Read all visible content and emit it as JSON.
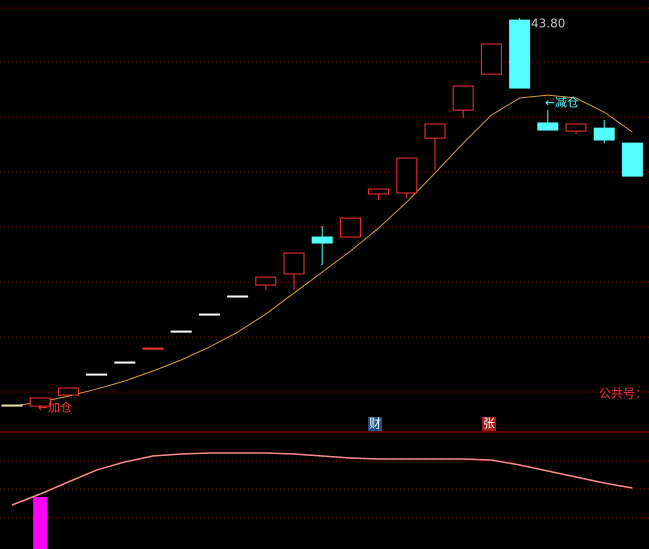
{
  "chart_data": [
    {
      "type": "candlestick",
      "max_label": "43.80",
      "ylim": [
        19.85,
        44.85
      ],
      "yticks": [
        44.38,
        41.24,
        38.04,
        34.85,
        31.65,
        28.45,
        25.25,
        22.06
      ],
      "grid": true,
      "open": [
        21.3,
        21.24,
        21.88,
        23.1,
        23.8,
        24.61,
        25.6,
        26.59,
        27.64,
        28.28,
        28.92,
        31.07,
        31.07,
        33.57,
        33.63,
        36.82,
        38.45,
        40.54,
        43.68,
        37.7,
        37.23,
        37.4,
        36.53
      ],
      "high": [
        21.3,
        21.71,
        22.29,
        23.1,
        23.8,
        24.61,
        25.6,
        26.59,
        27.64,
        28.74,
        30.14,
        31.71,
        32.17,
        33.86,
        35.66,
        37.64,
        39.85,
        42.29,
        43.8,
        38.45,
        37.64,
        37.87,
        36.53
      ],
      "low": [
        21.3,
        21.24,
        21.88,
        23.1,
        23.8,
        24.61,
        25.6,
        26.59,
        27.64,
        27.99,
        27.99,
        29.44,
        31.07,
        33.22,
        33.33,
        34.96,
        37.99,
        40.54,
        39.73,
        37.29,
        37.06,
        36.53,
        34.61
      ],
      "close": [
        21.3,
        21.71,
        22.29,
        23.1,
        23.8,
        24.61,
        25.6,
        26.59,
        27.64,
        28.74,
        30.14,
        30.72,
        32.17,
        33.86,
        35.66,
        37.64,
        39.85,
        42.29,
        39.73,
        37.29,
        37.64,
        36.71,
        34.61
      ],
      "colors": [
        "#e8e8a0",
        "#ff3232",
        "#ff3232",
        "#ffffff",
        "#ffffff",
        "#ff3232",
        "#ffffff",
        "#ffffff",
        "#ffffff",
        "#ff3232",
        "#ff3232",
        "#54fcfc",
        "#ff3232",
        "#ff3232",
        "#ff3232",
        "#ff3232",
        "#ff3232",
        "#ff3232",
        "#54fcfc",
        "#54fcfc",
        "#ff3232",
        "#54fcfc",
        "#54fcfc"
      ],
      "lines": [
        {
          "color": "#d4a03c",
          "values": [
            21.24,
            21.47,
            21.82,
            22.23,
            22.7,
            23.28,
            23.92,
            24.67,
            25.54,
            26.59,
            27.81,
            29.03,
            30.25,
            31.59,
            33.1,
            34.79,
            36.53,
            38.16,
            39.15,
            39.32,
            39.15,
            38.33,
            37.17
          ]
        }
      ],
      "annotations": [
        {
          "text": "←加仓",
          "color": "#ff3232"
        },
        {
          "text": "←减仓",
          "color": "#54fcfc"
        },
        {
          "text": "公共号：",
          "color": "#ff3232"
        }
      ]
    },
    {
      "type": "line",
      "ylim": [
        0,
        100
      ],
      "yticks": [
        75.2,
        51.3,
        26.5
      ],
      "grid": true,
      "series": [
        {
          "color": "#ff8c8c",
          "values": [
            37.6,
            47.0,
            57.3,
            67.5,
            74.4,
            79.5,
            81.2,
            82.1,
            82.1,
            82.1,
            81.2,
            79.5,
            77.8,
            76.9,
            76.9,
            76.9,
            76.9,
            76.1,
            71.8,
            66.7,
            61.5,
            56.4,
            52.1
          ]
        }
      ],
      "bars": {
        "color": "#ff00ff",
        "values": [
          null,
          44.4,
          null,
          null,
          null,
          null,
          null,
          null,
          null,
          null,
          null,
          null,
          null,
          null,
          null,
          null,
          null,
          null,
          null,
          null,
          null,
          null,
          null
        ]
      },
      "annotations": [
        {
          "text": "财",
          "color": "#ffffff",
          "background": "#1f4e8c"
        },
        {
          "text": "张",
          "color": "#ffffff",
          "background": "#a01818"
        }
      ]
    }
  ]
}
